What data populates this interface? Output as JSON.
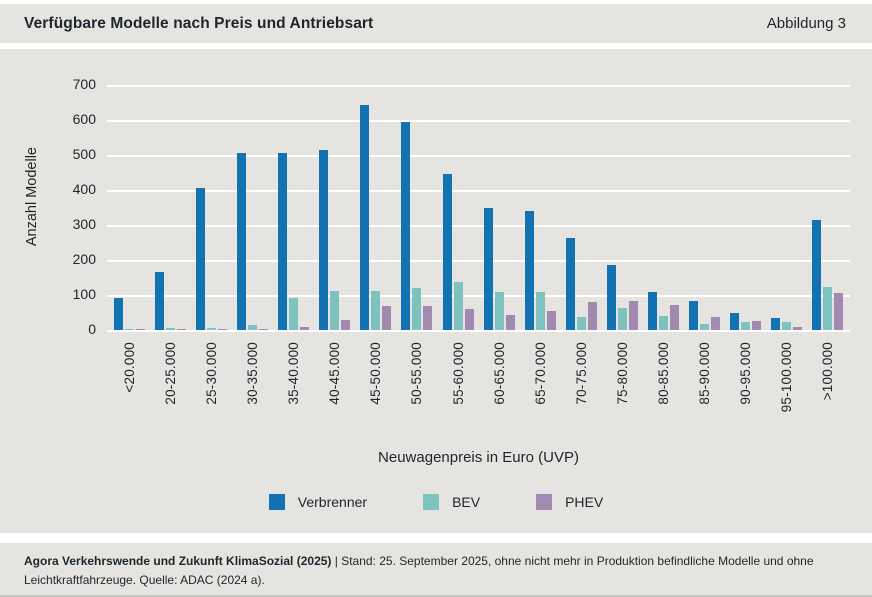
{
  "header": {
    "title": "Verfügbare Modelle nach Preis und Antriebsart",
    "figure_label": "Abbildung 3"
  },
  "chart_data": {
    "type": "bar",
    "title": "Verfügbare Modelle nach Preis und Antriebsart",
    "xlabel": "Neuwagenpreis in Euro (UVP)",
    "ylabel": "Anzahl Modelle",
    "ylim": [
      0,
      700
    ],
    "ytick_step": 100,
    "grid": true,
    "legend_position": "bottom",
    "categories": [
      "<20.000",
      "20-25.000",
      "25-30.000",
      "30-35.000",
      "35-40.000",
      "40-45.000",
      "45-50.000",
      "50-55.000",
      "55-60.000",
      "60-65.000",
      "65-70.000",
      "70-75.000",
      "75-80.000",
      "80-85.000",
      "85-90.000",
      "90-95.000",
      "95-100.000",
      ">100.000"
    ],
    "series": [
      {
        "name": "Verbrenner",
        "color": "#1272b2",
        "values": [
          92,
          165,
          405,
          507,
          507,
          515,
          643,
          595,
          447,
          348,
          340,
          264,
          185,
          110,
          82,
          50,
          35,
          315
        ]
      },
      {
        "name": "BEV",
        "color": "#7ec2bf",
        "values": [
          4,
          5,
          5,
          13,
          92,
          112,
          112,
          120,
          137,
          110,
          108,
          36,
          62,
          40,
          17,
          24,
          22,
          122
        ]
      },
      {
        "name": "PHEV",
        "color": "#a189b0",
        "values": [
          1,
          1,
          1,
          2,
          8,
          28,
          70,
          68,
          60,
          42,
          54,
          79,
          83,
          72,
          36,
          26,
          9,
          105
        ]
      }
    ]
  },
  "footer": {
    "source_bold": "Agora Verkehrswende und Zukunft KlimaSozial (2025)",
    "source_rest": " | Stand: 25. September 2025, ohne nicht mehr in Produktion befindliche Modelle und ohne Leichtkraftfahrzeuge. Quelle: ADAC (2024 a)."
  },
  "colors": {
    "background": "#e5e4e0",
    "gridline": "#ffffff",
    "text": "#1d262c"
  }
}
